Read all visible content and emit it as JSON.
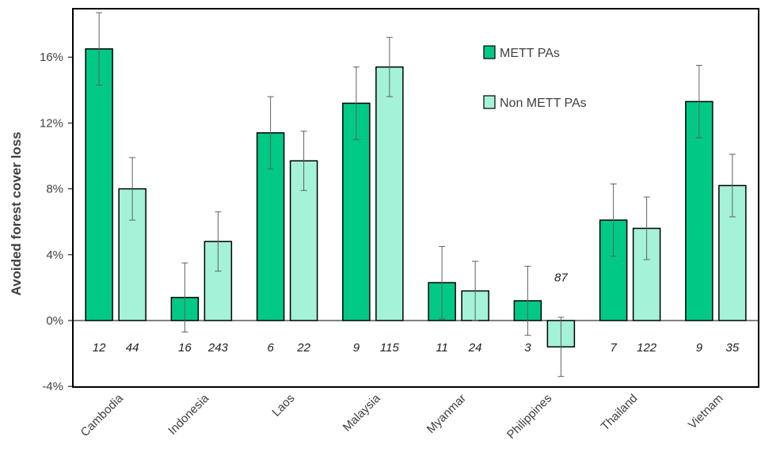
{
  "chart_data": {
    "type": "bar",
    "title": "",
    "xlabel": "",
    "ylabel": "Avoided forest cover loss",
    "ylim": [
      -4,
      19
    ],
    "yticks": [
      -4,
      0,
      4,
      8,
      12,
      16
    ],
    "ytick_labels": [
      "-4%",
      "0%",
      "4%",
      "8%",
      "12%",
      "16%"
    ],
    "grid": false,
    "legend": "top-right",
    "categories": [
      "Cambodia",
      "Indonesia",
      "Laos",
      "Malaysia",
      "Myanmar",
      "Philippines",
      "Thailand",
      "Vietnam"
    ],
    "series": [
      {
        "name": "METT PAs",
        "color": "#00c986",
        "values": [
          16.5,
          1.4,
          11.4,
          13.2,
          2.3,
          1.2,
          6.1,
          13.3
        ],
        "error": [
          2.2,
          2.1,
          2.2,
          2.2,
          2.2,
          2.1,
          2.2,
          2.2
        ],
        "counts": [
          "12",
          "16",
          "6",
          "9",
          "11",
          "3",
          "7",
          "9"
        ]
      },
      {
        "name": "Non METT PAs",
        "color": "#a4f2d8",
        "values": [
          8.0,
          4.8,
          9.7,
          15.4,
          1.8,
          -1.6,
          5.6,
          8.2
        ],
        "error": [
          1.9,
          1.8,
          1.8,
          1.8,
          1.8,
          1.8,
          1.9,
          1.9
        ],
        "counts": [
          "44",
          "243",
          "22",
          "115",
          "24",
          "87",
          "122",
          "35"
        ]
      }
    ]
  }
}
